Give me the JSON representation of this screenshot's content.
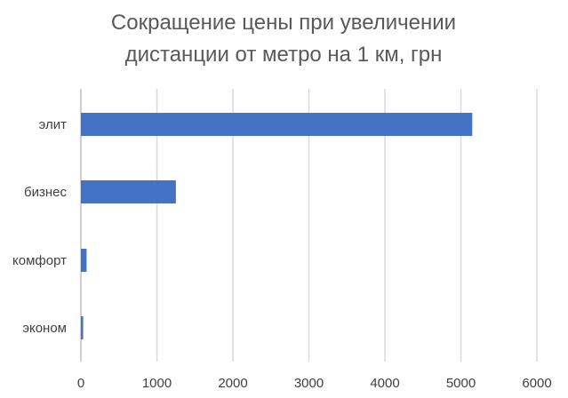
{
  "chart_data": {
    "type": "bar",
    "orientation": "horizontal",
    "title_lines": [
      "Сокращение цены при увеличении",
      "дистанции от метро на 1 км, грн"
    ],
    "categories": [
      "элит",
      "бизнес",
      "комфорт",
      "эконом"
    ],
    "values": [
      5150,
      1250,
      75,
      30
    ],
    "xlim": [
      0,
      6000
    ],
    "xticks": [
      "0",
      "1000",
      "2000",
      "3000",
      "4000",
      "5000",
      "6000"
    ],
    "xlabel": "",
    "ylabel": "",
    "grid": "vertical",
    "legend": "none",
    "bar_color": "#4472c4"
  }
}
